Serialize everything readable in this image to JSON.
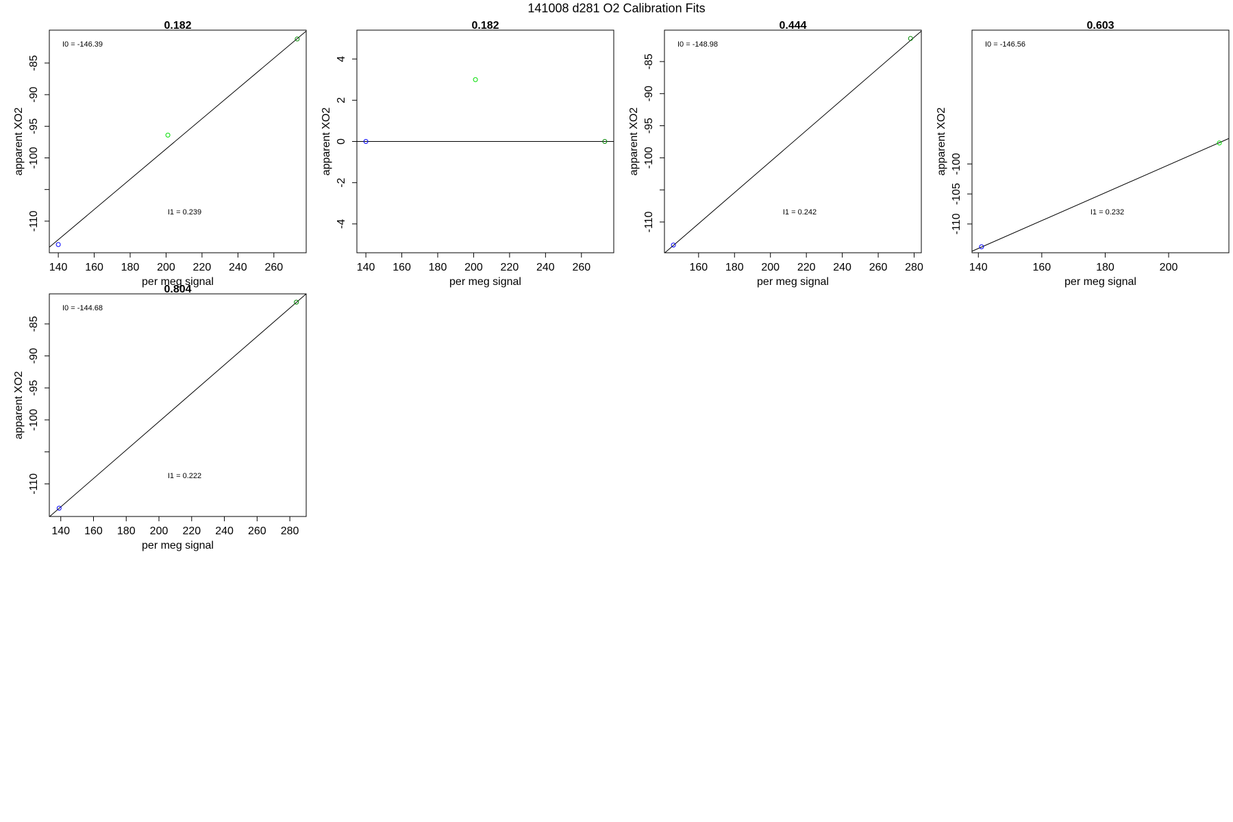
{
  "page": {
    "title": "141008   d281   O2 Calibration Fits"
  },
  "chart_data": [
    {
      "type": "scatter",
      "title": "0.182",
      "xlabel": "per meg signal",
      "ylabel": "apparent XO2",
      "xlim": [
        135,
        278
      ],
      "ylim": [
        -115,
        -79.8
      ],
      "xticks": [
        140,
        160,
        180,
        200,
        220,
        240,
        260
      ],
      "yticks": [
        -85,
        -90,
        -95,
        -100,
        -105,
        -110
      ],
      "yticklabels": [
        "-85",
        "-90",
        "-95",
        "-100",
        "",
        "-110"
      ],
      "intercept_label": "I0 =  -146.39",
      "slope_label": "I1 =  0.239",
      "fit_line": {
        "intercept": -146.39,
        "slope": 0.239
      },
      "points": [
        {
          "x": 140,
          "y": -113.7,
          "color": "#0000ff"
        },
        {
          "x": 201,
          "y": -96.4,
          "color": "#00dd00"
        },
        {
          "x": 273,
          "y": -81.2,
          "color": "#008800"
        }
      ]
    },
    {
      "type": "scatter",
      "title": "0.182",
      "xlabel": "per meg signal",
      "ylabel": "apparent XO2",
      "xlim": [
        135,
        278
      ],
      "ylim": [
        -5.4,
        5.4
      ],
      "xticks": [
        140,
        160,
        180,
        200,
        220,
        240,
        260
      ],
      "yticks": [
        4,
        2,
        0,
        -2,
        -4
      ],
      "yticklabels": [
        "4",
        "2",
        "0",
        "-2",
        "-4"
      ],
      "fit_line": {
        "intercept": 0,
        "slope": 0
      },
      "points": [
        {
          "x": 140,
          "y": 0,
          "color": "#0000ff"
        },
        {
          "x": 201,
          "y": 3.0,
          "color": "#00dd00"
        },
        {
          "x": 273,
          "y": 0,
          "color": "#008800"
        }
      ]
    },
    {
      "type": "scatter",
      "title": "0.444",
      "xlabel": "per meg signal",
      "ylabel": "apparent XO2",
      "xlim": [
        141,
        284
      ],
      "ylim": [
        -114.8,
        -80.1
      ],
      "xticks": [
        160,
        180,
        200,
        220,
        240,
        260,
        280
      ],
      "yticks": [
        -85,
        -90,
        -95,
        -100,
        -105,
        -110
      ],
      "yticklabels": [
        "-85",
        "-90",
        "-95",
        "-100",
        "",
        "-110"
      ],
      "intercept_label": "I0 =  -148.98",
      "slope_label": "I1 =  0.242",
      "fit_line": {
        "intercept": -148.98,
        "slope": 0.242
      },
      "points": [
        {
          "x": 146,
          "y": -113.6,
          "color": "#0000ff"
        },
        {
          "x": 278,
          "y": -81.4,
          "color": "#008800"
        }
      ]
    },
    {
      "type": "scatter",
      "title": "0.603",
      "xlabel": "per meg signal",
      "ylabel": "apparent XO2",
      "xlim": [
        138,
        219
      ],
      "ylim": [
        -114.8,
        -77.7
      ],
      "xticks": [
        140,
        160,
        180,
        200
      ],
      "yticks": [
        -100,
        -105,
        -110
      ],
      "yticklabels": [
        "-100",
        "-105",
        "-110"
      ],
      "intercept_label": "I0 =  -146.56",
      "slope_label": "I1 =  0.232",
      "fit_line": {
        "intercept": -146.56,
        "slope": 0.232
      },
      "points": [
        {
          "x": 141,
          "y": -113.8,
          "color": "#0000ff"
        },
        {
          "x": 216,
          "y": -96.5,
          "color": "#00dd00"
        }
      ]
    },
    {
      "type": "scatter",
      "title": "0.804",
      "xlabel": "per meg signal",
      "ylabel": "apparent XO2",
      "xlim": [
        133,
        290
      ],
      "ylim": [
        -115.1,
        -80.3
      ],
      "xticks": [
        140,
        160,
        180,
        200,
        220,
        240,
        260,
        280
      ],
      "yticks": [
        -85,
        -90,
        -95,
        -100,
        -105,
        -110
      ],
      "yticklabels": [
        "-85",
        "-90",
        "-95",
        "-100",
        "",
        "-110"
      ],
      "intercept_label": "I0 =  -144.68",
      "slope_label": "I1 =  0.222",
      "fit_line": {
        "intercept": -144.68,
        "slope": 0.222
      },
      "points": [
        {
          "x": 139,
          "y": -113.8,
          "color": "#0000ff"
        },
        {
          "x": 284,
          "y": -81.6,
          "color": "#008800"
        }
      ]
    }
  ]
}
